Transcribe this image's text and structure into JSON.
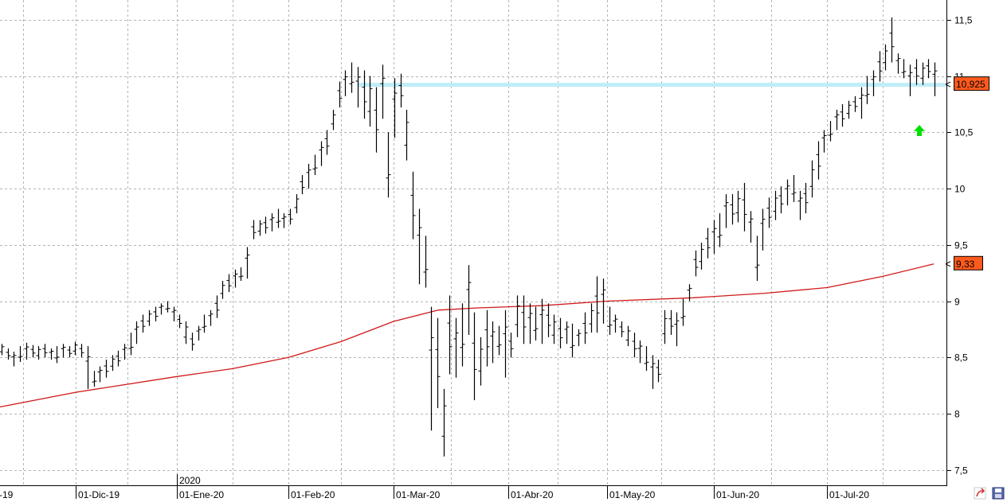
{
  "chart_data": {
    "type": "ohlc-bar",
    "ylim": [
      7.3,
      11.65
    ],
    "y_ticks": [
      "7,5",
      "8",
      "8,5",
      "9",
      "9,5",
      "10",
      "10,5",
      "11",
      "11,5"
    ],
    "y_tick_values": [
      7.5,
      8,
      8.5,
      9,
      9.5,
      10,
      10.5,
      11,
      11.5
    ],
    "x_labels": [
      "-19",
      "01-Dic-19",
      "01-Ene-20",
      "01-Feb-20",
      "01-Mar-20",
      "01-Abr-20",
      "01-May-20",
      "01-Jun-20",
      "01-Jul-20"
    ],
    "year_label": "2020",
    "grid": true,
    "resistance_level": 10.925,
    "moving_average_last": 9.33,
    "price_tags": [
      {
        "label": "10,925",
        "value": 10.925,
        "color": "#ff5a1e"
      },
      {
        "label": "9,33",
        "value": 9.33,
        "color": "#ff5a1e"
      }
    ],
    "moving_average": [
      8.06,
      8.19,
      8.33,
      8.4,
      8.5,
      8.64,
      8.82,
      8.92,
      8.94,
      8.96,
      9.0,
      9.03,
      9.07,
      9.12,
      9.22,
      9.33
    ],
    "bars": [
      [
        8.62,
        8.52
      ],
      [
        8.58,
        8.48
      ],
      [
        8.55,
        8.42
      ],
      [
        8.6,
        8.46
      ],
      [
        8.63,
        8.48
      ],
      [
        8.61,
        8.5
      ],
      [
        8.6,
        8.48
      ],
      [
        8.62,
        8.5
      ],
      [
        8.58,
        8.48
      ],
      [
        8.6,
        8.45
      ],
      [
        8.62,
        8.5
      ],
      [
        8.6,
        8.5
      ],
      [
        8.64,
        8.52
      ],
      [
        8.62,
        8.5
      ],
      [
        8.6,
        8.22
      ],
      [
        8.38,
        8.24
      ],
      [
        8.42,
        8.28
      ],
      [
        8.48,
        8.32
      ],
      [
        8.52,
        8.38
      ],
      [
        8.56,
        8.42
      ],
      [
        8.62,
        8.48
      ],
      [
        8.72,
        8.52
      ],
      [
        8.82,
        8.62
      ],
      [
        8.88,
        8.72
      ],
      [
        8.92,
        8.78
      ],
      [
        8.95,
        8.82
      ],
      [
        8.98,
        8.88
      ],
      [
        9.0,
        8.9
      ],
      [
        8.95,
        8.82
      ],
      [
        8.88,
        8.76
      ],
      [
        8.82,
        8.62
      ],
      [
        8.72,
        8.56
      ],
      [
        8.78,
        8.65
      ],
      [
        8.88,
        8.72
      ],
      [
        8.92,
        8.78
      ],
      [
        9.05,
        8.85
      ],
      [
        9.18,
        9.02
      ],
      [
        9.24,
        9.08
      ],
      [
        9.28,
        9.12
      ],
      [
        9.3,
        9.18
      ],
      [
        9.48,
        9.2
      ],
      [
        9.72,
        9.55
      ],
      [
        9.72,
        9.58
      ],
      [
        9.75,
        9.6
      ],
      [
        9.78,
        9.62
      ],
      [
        9.82,
        9.65
      ],
      [
        9.78,
        9.65
      ],
      [
        9.82,
        9.68
      ],
      [
        9.95,
        9.78
      ],
      [
        10.12,
        9.95
      ],
      [
        10.22,
        10.0
      ],
      [
        10.3,
        10.12
      ],
      [
        10.42,
        10.2
      ],
      [
        10.52,
        10.3
      ],
      [
        10.7,
        10.52
      ],
      [
        10.95,
        10.72
      ],
      [
        11.05,
        10.82
      ],
      [
        11.12,
        10.85
      ],
      [
        11.08,
        10.72
      ],
      [
        11.05,
        10.62
      ],
      [
        11.0,
        10.55
      ],
      [
        10.9,
        10.32
      ],
      [
        11.1,
        10.62
      ],
      [
        10.5,
        9.92
      ],
      [
        10.98,
        10.45
      ],
      [
        11.02,
        10.72
      ],
      [
        10.7,
        10.25
      ],
      [
        10.15,
        9.55
      ],
      [
        9.82,
        9.15
      ],
      [
        9.58,
        9.12
      ],
      [
        8.95,
        7.85
      ],
      [
        8.85,
        8.05
      ],
      [
        8.22,
        7.62
      ],
      [
        9.05,
        8.35
      ],
      [
        8.85,
        8.32
      ],
      [
        8.98,
        8.42
      ],
      [
        9.32,
        8.7
      ],
      [
        8.9,
        8.12
      ],
      [
        8.68,
        8.25
      ],
      [
        8.92,
        8.42
      ],
      [
        8.82,
        8.45
      ],
      [
        8.78,
        8.52
      ],
      [
        8.92,
        8.32
      ],
      [
        8.72,
        8.5
      ],
      [
        9.05,
        8.68
      ],
      [
        9.05,
        8.62
      ],
      [
        8.98,
        8.62
      ],
      [
        8.95,
        8.65
      ],
      [
        9.02,
        8.62
      ],
      [
        8.98,
        8.68
      ],
      [
        8.88,
        8.62
      ],
      [
        8.85,
        8.58
      ],
      [
        8.82,
        8.62
      ],
      [
        8.8,
        8.5
      ],
      [
        8.75,
        8.6
      ],
      [
        8.9,
        8.62
      ],
      [
        8.98,
        8.72
      ],
      [
        9.22,
        8.72
      ],
      [
        9.2,
        8.8
      ],
      [
        8.95,
        8.7
      ],
      [
        8.88,
        8.72
      ],
      [
        8.82,
        8.68
      ],
      [
        8.78,
        8.6
      ],
      [
        8.72,
        8.5
      ],
      [
        8.65,
        8.45
      ],
      [
        8.6,
        8.38
      ],
      [
        8.52,
        8.22
      ],
      [
        8.48,
        8.28
      ],
      [
        8.92,
        8.62
      ],
      [
        8.92,
        8.7
      ],
      [
        8.9,
        8.6
      ],
      [
        9.02,
        8.78
      ],
      [
        9.15,
        9.0
      ],
      [
        9.45,
        9.22
      ],
      [
        9.52,
        9.28
      ],
      [
        9.65,
        9.38
      ],
      [
        9.72,
        9.42
      ],
      [
        9.78,
        9.48
      ],
      [
        9.95,
        9.65
      ],
      [
        9.95,
        9.68
      ],
      [
        9.98,
        9.7
      ],
      [
        10.05,
        9.62
      ],
      [
        9.8,
        9.52
      ],
      [
        9.58,
        9.18
      ],
      [
        9.82,
        9.45
      ],
      [
        9.92,
        9.65
      ],
      [
        9.98,
        9.72
      ],
      [
        10.02,
        9.78
      ],
      [
        10.08,
        9.85
      ],
      [
        10.12,
        9.88
      ],
      [
        9.98,
        9.72
      ],
      [
        10.05,
        9.78
      ],
      [
        10.25,
        9.92
      ],
      [
        10.42,
        10.08
      ],
      [
        10.52,
        10.32
      ],
      [
        10.6,
        10.42
      ],
      [
        10.7,
        10.52
      ],
      [
        10.75,
        10.55
      ],
      [
        10.78,
        10.62
      ],
      [
        10.82,
        10.68
      ],
      [
        10.9,
        10.62
      ],
      [
        11.0,
        10.75
      ],
      [
        11.05,
        10.82
      ],
      [
        11.22,
        10.95
      ],
      [
        11.28,
        11.05
      ],
      [
        11.52,
        11.12
      ],
      [
        11.2,
        11.02
      ],
      [
        11.15,
        10.98
      ],
      [
        11.1,
        10.82
      ],
      [
        11.15,
        10.92
      ],
      [
        11.12,
        10.92
      ],
      [
        11.15,
        10.98
      ],
      [
        11.12,
        10.82
      ]
    ]
  },
  "footer": {
    "icons": [
      "share-icon",
      "save-icon"
    ]
  }
}
